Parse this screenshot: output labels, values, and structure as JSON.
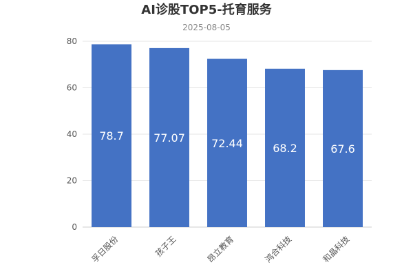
{
  "chart_data": {
    "type": "bar",
    "title": "AI诊股TOP5-托育服务",
    "subtitle": "2025-08-05",
    "categories": [
      "孚日股份",
      "孩子王",
      "昂立教育",
      "鸿合科技",
      "和晶科技"
    ],
    "values": [
      78.7,
      77.07,
      72.44,
      68.2,
      67.6
    ],
    "value_labels": [
      "78.7",
      "77.07",
      "72.44",
      "68.2",
      "67.6"
    ],
    "yticks": [
      0,
      20,
      40,
      60,
      80
    ],
    "ytick_labels": [
      "0",
      "20",
      "40",
      "60",
      "80"
    ],
    "ylim": [
      0,
      80
    ],
    "xlabel": "",
    "ylabel": "",
    "grid": true,
    "legend": "none",
    "colors": {
      "bar": "#4472C4"
    }
  }
}
